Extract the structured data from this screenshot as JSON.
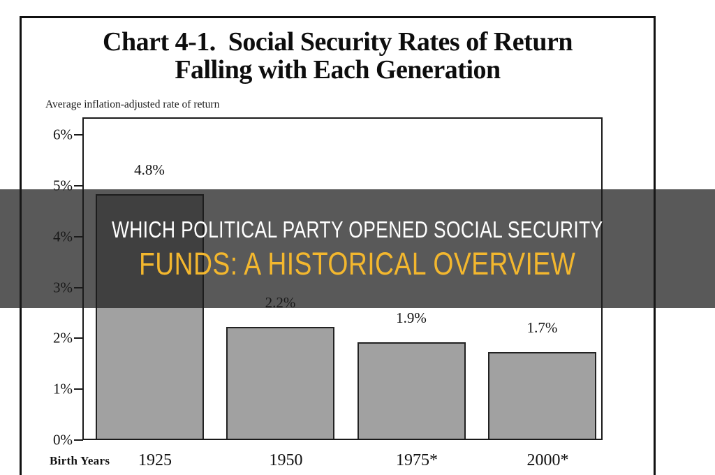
{
  "chart_data": {
    "type": "bar",
    "title_line1": "Chart 4-1.  Social Security Rates of Return",
    "title_line2": "Falling with Each Generation",
    "axis_note": "Average inflation-adjusted rate of return",
    "categories": [
      "1925",
      "1950",
      "1975*",
      "2000*"
    ],
    "values": [
      4.8,
      2.2,
      1.9,
      1.7
    ],
    "value_labels": [
      "4.8%",
      "2.2%",
      "1.9%",
      "1.7%"
    ],
    "x_axis_title": "Birth Years",
    "ylabel": "",
    "y_ticks": [
      "0%",
      "1%",
      "2%",
      "3%",
      "4%",
      "5%",
      "6%"
    ],
    "ylim": [
      0,
      6
    ],
    "grid": false,
    "legend": false,
    "bar_color": "#a1a1a1",
    "bar_border_color": "#222222",
    "axis_color": "#1a1a1a"
  },
  "overlay": {
    "line1": "WHICH POLITICAL PARTY OPENED SOCIAL SECURITY",
    "line2": "FUNDS: A HISTORICAL OVERVIEW",
    "line1_color": "#ffffff",
    "line2_color": "#f3b72e",
    "background": "rgba(28,28,28,0.73)"
  }
}
